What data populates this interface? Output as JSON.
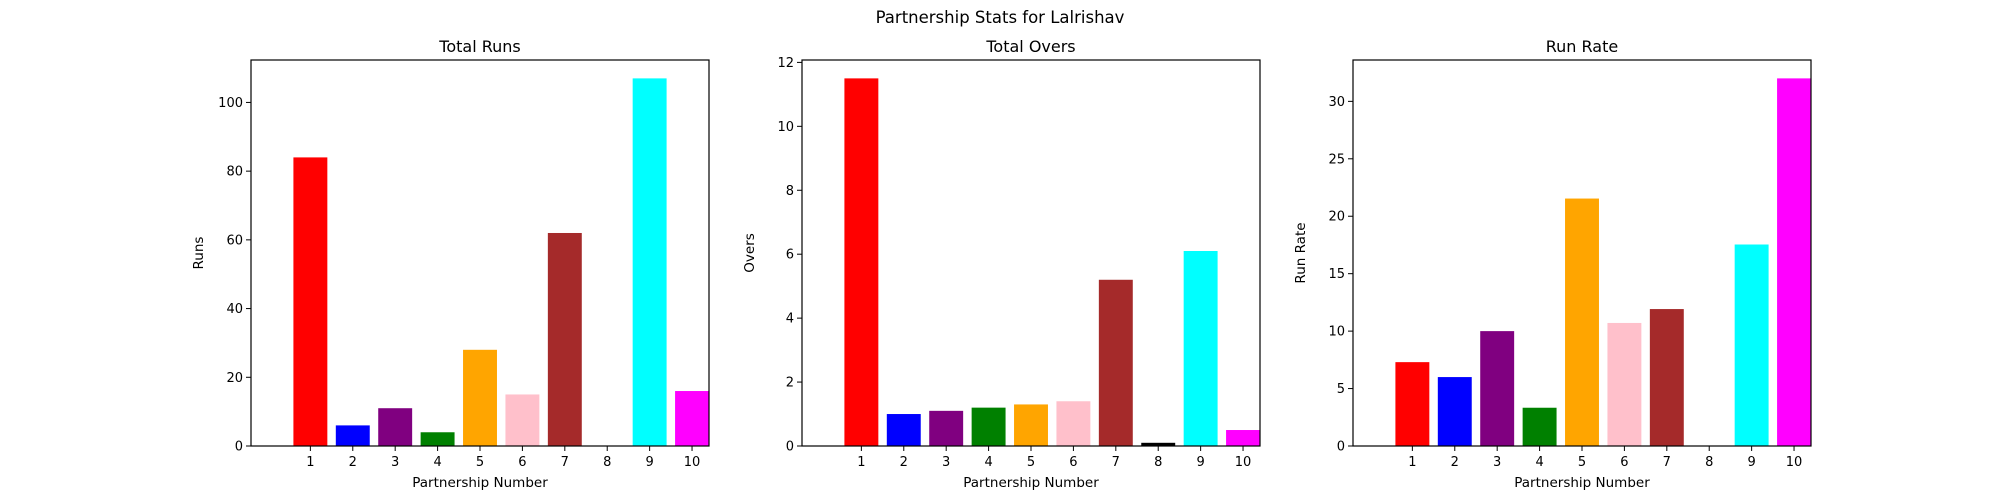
{
  "figure_title": "Partnership Stats for Lalrishav",
  "chart_data": [
    {
      "type": "bar",
      "title": "Total Runs",
      "xlabel": "Partnership Number",
      "ylabel": "Runs",
      "categories": [
        "1",
        "2",
        "3",
        "4",
        "5",
        "6",
        "7",
        "8",
        "9",
        "10"
      ],
      "values": [
        84,
        6,
        11,
        4,
        28,
        15,
        62,
        0,
        107,
        16
      ],
      "colors": [
        "#ff0000",
        "#0000ff",
        "#800080",
        "#008000",
        "#ffa500",
        "#ffc0cb",
        "#a52a2a",
        "#000000",
        "#00ffff",
        "#ff00ff"
      ],
      "ylim": [
        0,
        112.35
      ],
      "yticks": [
        0,
        20,
        40,
        60,
        80,
        100
      ],
      "grid": false
    },
    {
      "type": "bar",
      "title": "Total Overs",
      "xlabel": "Partnership Number",
      "ylabel": "Overs",
      "categories": [
        "1",
        "2",
        "3",
        "4",
        "5",
        "6",
        "7",
        "8",
        "9",
        "10"
      ],
      "values": [
        11.5,
        1.0,
        1.1,
        1.2,
        1.3,
        1.4,
        5.2,
        0.1,
        6.1,
        0.5
      ],
      "colors": [
        "#ff0000",
        "#0000ff",
        "#800080",
        "#008000",
        "#ffa500",
        "#ffc0cb",
        "#a52a2a",
        "#000000",
        "#00ffff",
        "#ff00ff"
      ],
      "ylim": [
        0,
        12.075
      ],
      "yticks": [
        0,
        2,
        4,
        6,
        8,
        10,
        12
      ],
      "grid": false
    },
    {
      "type": "bar",
      "title": "Run Rate",
      "xlabel": "Partnership Number",
      "ylabel": "Run Rate",
      "categories": [
        "1",
        "2",
        "3",
        "4",
        "5",
        "6",
        "7",
        "8",
        "9",
        "10"
      ],
      "values": [
        7.3,
        6.0,
        10.0,
        3.33,
        21.54,
        10.71,
        11.92,
        0.0,
        17.54,
        32.0
      ],
      "colors": [
        "#ff0000",
        "#0000ff",
        "#800080",
        "#008000",
        "#ffa500",
        "#ffc0cb",
        "#a52a2a",
        "#000000",
        "#00ffff",
        "#ff00ff"
      ],
      "ylim": [
        0,
        33.6
      ],
      "yticks": [
        0,
        5,
        10,
        15,
        20,
        25,
        30
      ],
      "grid": false
    }
  ]
}
